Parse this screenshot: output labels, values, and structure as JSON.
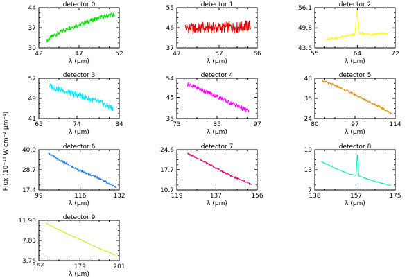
{
  "figure": {
    "ylabel": "Flux (10⁻¹⁸ W cm⁻² μm⁻¹)"
  },
  "chart_data": [
    {
      "type": "line",
      "title": "detector 0",
      "xlabel": "λ (μm)",
      "xlim": [
        42,
        52
      ],
      "ylim": [
        30,
        44
      ],
      "xticks": [
        "42",
        "47",
        "52"
      ],
      "yticks": [
        "30",
        "37",
        "44"
      ],
      "color": "#00e000",
      "series": [
        {
          "x": [
            43,
            44,
            45,
            46,
            47,
            48,
            49,
            50,
            51,
            51.4
          ],
          "y": [
            32.5,
            34.5,
            36,
            37.2,
            38,
            39,
            40,
            40.8,
            41.5,
            41.2
          ]
        }
      ]
    },
    {
      "type": "line",
      "title": "detector 1",
      "xlabel": "λ (μm)",
      "xlim": [
        47,
        66
      ],
      "ylim": [
        37,
        55
      ],
      "xticks": [
        "47",
        "57",
        "66"
      ],
      "yticks": [
        "37",
        "46",
        "55"
      ],
      "color": "#e00000",
      "series": [
        {
          "x": [
            49,
            51,
            53,
            55,
            57,
            59,
            61,
            63,
            64.5
          ],
          "y": [
            46,
            45.6,
            45.8,
            46,
            45.9,
            46.2,
            46,
            46.5,
            47
          ]
        }
      ]
    },
    {
      "type": "line",
      "title": "detector 2",
      "xlabel": "λ (μm)",
      "xlim": [
        55,
        72
      ],
      "ylim": [
        43.6,
        56.1
      ],
      "xticks": [
        "55",
        "64",
        "72"
      ],
      "yticks": [
        "43.6",
        "49.8",
        "56.1"
      ],
      "color": "#ffff00",
      "series": [
        {
          "x": [
            57.5,
            59,
            61,
            62.5,
            63.5,
            63.9,
            64.3,
            65,
            67,
            69,
            70.5
          ],
          "y": [
            46.2,
            46.5,
            47,
            47.5,
            47.8,
            55.5,
            48.2,
            48,
            47.8,
            48,
            47.9
          ]
        }
      ]
    },
    {
      "type": "line",
      "title": "detector 3",
      "xlabel": "λ (μm)",
      "xlim": [
        65,
        84
      ],
      "ylim": [
        41,
        57
      ],
      "xticks": [
        "65",
        "74",
        "84"
      ],
      "yticks": [
        "41",
        "49",
        "57"
      ],
      "color": "#00e8ff",
      "series": [
        {
          "x": [
            67.5,
            70,
            72.5,
            75,
            77.5,
            80,
            82.5
          ],
          "y": [
            54,
            52.5,
            51,
            50,
            48.5,
            47,
            45
          ]
        }
      ]
    },
    {
      "type": "line",
      "title": "detector 4",
      "xlabel": "λ (μm)",
      "xlim": [
        73,
        97
      ],
      "ylim": [
        35,
        54
      ],
      "xticks": [
        "73",
        "85",
        "97"
      ],
      "yticks": [
        "35",
        "45",
        "54"
      ],
      "color": "#ff00ff",
      "series": [
        {
          "x": [
            76,
            79,
            82,
            85,
            88,
            91,
            94.5
          ],
          "y": [
            51.5,
            49.5,
            47.5,
            45.5,
            43,
            41,
            38.5
          ]
        }
      ]
    },
    {
      "type": "line",
      "title": "detector 5",
      "xlabel": "λ (μm)",
      "xlim": [
        80,
        114
      ],
      "ylim": [
        24,
        48
      ],
      "xticks": [
        "80",
        "97",
        "114"
      ],
      "yticks": [
        "24",
        "36",
        "48"
      ],
      "color": "#e89000",
      "series": [
        {
          "x": [
            83,
            88,
            93,
            98,
            103,
            108,
            112.5
          ],
          "y": [
            46.5,
            44,
            41,
            37.5,
            34,
            30.5,
            27
          ]
        }
      ]
    },
    {
      "type": "line",
      "title": "detector 6",
      "xlabel": "λ (μm)",
      "xlim": [
        99,
        132
      ],
      "ylim": [
        17.4,
        40.0
      ],
      "xticks": [
        "99",
        "116",
        "132"
      ],
      "yticks": [
        "17.4",
        "28.7",
        "40.0"
      ],
      "color": "#1c78e0",
      "series": [
        {
          "x": [
            103,
            107,
            111,
            115,
            119,
            123,
            127,
            130.5
          ],
          "y": [
            38,
            34.5,
            31.5,
            28.8,
            26.5,
            24.5,
            21.5,
            19
          ]
        }
      ]
    },
    {
      "type": "line",
      "title": "detector 7",
      "xlabel": "λ (μm)",
      "xlim": [
        119,
        156
      ],
      "ylim": [
        10.7,
        24.6
      ],
      "xticks": [
        "119",
        "137",
        "156"
      ],
      "yticks": [
        "10.7",
        "17.7",
        "24.6"
      ],
      "color": "#e0007c",
      "series": [
        {
          "x": [
            124,
            129,
            134,
            139,
            144,
            149,
            153.5
          ],
          "y": [
            23.2,
            21.5,
            19.5,
            17.5,
            15.5,
            14,
            12.5
          ]
        }
      ]
    },
    {
      "type": "line",
      "title": "detector 8",
      "xlabel": "λ (μm)",
      "xlim": [
        138,
        175
      ],
      "ylim": [
        7,
        19
      ],
      "xticks": [
        "138",
        "157",
        "175"
      ],
      "yticks": [
        "7",
        "13",
        "19"
      ],
      "color": "#00e8b8",
      "series": [
        {
          "x": [
            141,
            145,
            149,
            153,
            157,
            157.6,
            158.2,
            162,
            166,
            170,
            173
          ],
          "y": [
            15.5,
            14.2,
            13,
            12,
            11.3,
            18.2,
            11.2,
            10.3,
            9.5,
            8.8,
            8.3
          ]
        }
      ]
    },
    {
      "type": "line",
      "title": "detector 9",
      "xlabel": "λ (μm)",
      "xlim": [
        156,
        201
      ],
      "ylim": [
        3.76,
        11.9
      ],
      "xticks": [
        "156",
        "179",
        "201"
      ],
      "yticks": [
        "3.76",
        "7.83",
        "11.90"
      ],
      "color": "#c8f000",
      "series": [
        {
          "x": [
            160,
            165,
            170,
            175,
            180,
            185,
            190,
            195,
            199
          ],
          "y": [
            11.3,
            10.4,
            9.5,
            8.7,
            7.9,
            7.0,
            6.2,
            5.5,
            4.8
          ]
        }
      ]
    }
  ]
}
